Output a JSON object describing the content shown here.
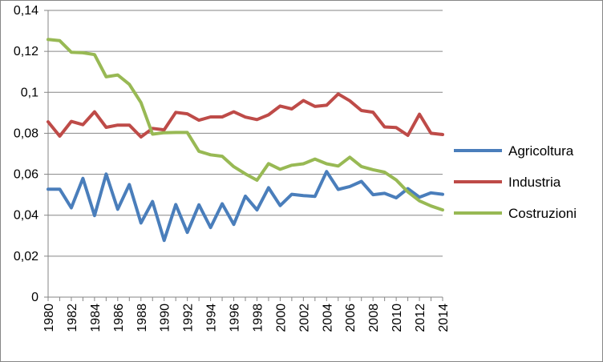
{
  "chart_data": {
    "type": "line",
    "x": [
      1980,
      1981,
      1982,
      1983,
      1984,
      1985,
      1986,
      1987,
      1988,
      1989,
      1990,
      1991,
      1992,
      1993,
      1994,
      1995,
      1996,
      1997,
      1998,
      1999,
      2000,
      2001,
      2002,
      2003,
      2004,
      2005,
      2006,
      2007,
      2008,
      2009,
      2010,
      2011,
      2012,
      2013,
      2014
    ],
    "x_tick_labels": [
      "1980",
      "1982",
      "1984",
      "1986",
      "1988",
      "1990",
      "1992",
      "1994",
      "1996",
      "1998",
      "2000",
      "2002",
      "2004",
      "2006",
      "2008",
      "2010",
      "2012",
      "2014"
    ],
    "y_tick_labels": [
      "0",
      "0,02",
      "0,04",
      "0,06",
      "0,08",
      "0,1",
      "0,12",
      "0,14"
    ],
    "ylim": [
      0,
      0.14
    ],
    "grid": true,
    "legend_position": "right",
    "series": [
      {
        "name": "Agricoltura",
        "color": "#4a7ebb",
        "values": [
          0.0527,
          0.0527,
          0.0436,
          0.058,
          0.0398,
          0.0601,
          0.0429,
          0.055,
          0.0362,
          0.0467,
          0.0277,
          0.0452,
          0.0316,
          0.0451,
          0.034,
          0.0456,
          0.0355,
          0.0493,
          0.0426,
          0.0534,
          0.0447,
          0.0502,
          0.0496,
          0.0492,
          0.0613,
          0.0526,
          0.054,
          0.0565,
          0.05,
          0.0507,
          0.0485,
          0.053,
          0.0488,
          0.0509,
          0.0502
        ]
      },
      {
        "name": "Industria",
        "color": "#be4b48",
        "values": [
          0.0856,
          0.0786,
          0.0858,
          0.0842,
          0.0905,
          0.0829,
          0.084,
          0.084,
          0.0782,
          0.0824,
          0.0817,
          0.0902,
          0.0895,
          0.0864,
          0.088,
          0.088,
          0.0905,
          0.0879,
          0.0867,
          0.089,
          0.0933,
          0.0919,
          0.096,
          0.0931,
          0.0937,
          0.0992,
          0.0959,
          0.0911,
          0.0903,
          0.0831,
          0.0828,
          0.079,
          0.0893,
          0.08,
          0.0794
        ]
      },
      {
        "name": "Costruzioni",
        "color": "#98b954",
        "values": [
          0.1258,
          0.1252,
          0.1196,
          0.1193,
          0.1184,
          0.1076,
          0.1085,
          0.1039,
          0.095,
          0.0796,
          0.0803,
          0.0804,
          0.0804,
          0.0712,
          0.0695,
          0.0688,
          0.0637,
          0.0602,
          0.0571,
          0.0652,
          0.0624,
          0.0644,
          0.0651,
          0.0674,
          0.0651,
          0.064,
          0.0683,
          0.0638,
          0.0622,
          0.061,
          0.0572,
          0.0514,
          0.047,
          0.0445,
          0.0426
        ]
      }
    ]
  }
}
